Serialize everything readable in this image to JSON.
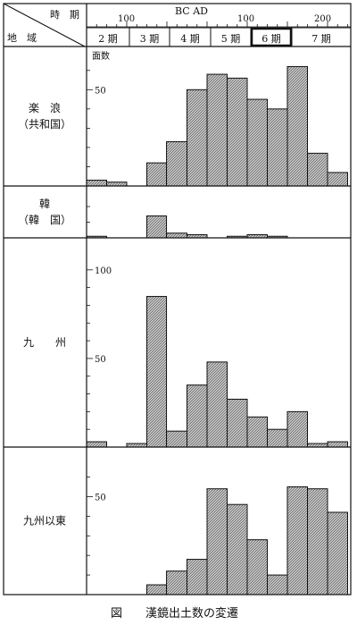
{
  "chart_data": {
    "type": "bar",
    "caption": "図　　漢鏡出土数の変遷",
    "header": {
      "time_label": "時　期",
      "region_label": "地　域",
      "era_label": "BC AD",
      "year_ticks": [
        "100",
        "100",
        "200"
      ],
      "periods": [
        "2 期",
        "3 期",
        "4 期",
        "5 期",
        "6 期",
        "7 期"
      ],
      "highlighted_period": "6 期"
    },
    "y_unit": "面数",
    "x_bins": [
      "BC200-175",
      "BC175-150",
      "BC150-125",
      "BC125-100",
      "BC100-75",
      "BC75-50",
      "BC50-25",
      "BC25-AD1",
      "AD1-25",
      "AD25-50",
      "AD50-75",
      "AD75-100",
      "AD100-125",
      "AD125-150",
      "AD150-175",
      "AD175-200",
      "AD200-225"
    ],
    "panels": [
      {
        "name_lines": [
          "楽　浪",
          "（共和国）"
        ],
        "ylim": [
          0,
          65
        ],
        "yticks": [
          50
        ],
        "minor_step": 10,
        "series": [
          {
            "x_from": "BC200",
            "x_to": "BC150",
            "value": 3
          },
          {
            "x_from": "BC150",
            "x_to": "BC100",
            "value": 2
          },
          {
            "x_from": "BC50",
            "x_to": "BC1",
            "value": 12
          },
          {
            "x_from": "BC1",
            "x_to": "AD50",
            "value": 23
          },
          {
            "x_from": "AD50",
            "x_to": "AD100",
            "value": 50
          },
          {
            "x_from": "AD100",
            "x_to": "AD150",
            "value": 58
          },
          {
            "x_from": "AD150",
            "x_to": "AD200",
            "value": 56
          },
          {
            "x_from": "AD200",
            "x_to": "AD250",
            "value": 45
          },
          {
            "x_from": "AD250",
            "x_to": "AD300",
            "value": 40
          },
          {
            "x_from": "AD300",
            "x_to": "AD350",
            "value": 62
          },
          {
            "x_from": "AD350",
            "x_to": "AD400",
            "value": 17
          },
          {
            "x_from": "AD400",
            "x_to": "AD450",
            "value": 7
          }
        ]
      },
      {
        "name_lines": [
          "韓",
          "（韓　国）"
        ],
        "ylim": [
          0,
          24
        ],
        "yticks": [],
        "minor_step": 10,
        "series": [
          {
            "x_from": "BC200",
            "x_to": "BC150",
            "value": 1
          },
          {
            "x_from": "BC50",
            "x_to": "BC1",
            "value": 14
          },
          {
            "x_from": "BC1",
            "x_to": "AD50",
            "value": 3
          },
          {
            "x_from": "AD50",
            "x_to": "AD100",
            "value": 2
          },
          {
            "x_from": "AD150",
            "x_to": "AD200",
            "value": 1
          },
          {
            "x_from": "AD200",
            "x_to": "AD250",
            "value": 2
          },
          {
            "x_from": "AD250",
            "x_to": "AD300",
            "value": 1
          }
        ]
      },
      {
        "name_lines": [
          "九　　州"
        ],
        "ylim": [
          0,
          110
        ],
        "yticks": [
          50,
          100
        ],
        "minor_step": 10,
        "series": [
          {
            "x_from": "BC200",
            "x_to": "BC150",
            "value": 3
          },
          {
            "x_from": "BC100",
            "x_to": "BC50",
            "value": 2
          },
          {
            "x_from": "BC50",
            "x_to": "BC1",
            "value": 85
          },
          {
            "x_from": "BC1",
            "x_to": "AD50",
            "value": 9
          },
          {
            "x_from": "AD50",
            "x_to": "AD100",
            "value": 35
          },
          {
            "x_from": "AD100",
            "x_to": "AD150",
            "value": 48
          },
          {
            "x_from": "AD150",
            "x_to": "AD200",
            "value": 27
          },
          {
            "x_from": "AD200",
            "x_to": "AD250",
            "value": 17
          },
          {
            "x_from": "AD250",
            "x_to": "AD300",
            "value": 10
          },
          {
            "x_from": "AD300",
            "x_to": "AD350",
            "value": 20
          },
          {
            "x_from": "AD350",
            "x_to": "AD400",
            "value": 2
          },
          {
            "x_from": "AD400",
            "x_to": "AD450",
            "value": 3
          }
        ]
      },
      {
        "name_lines": [
          "九州以東"
        ],
        "ylim": [
          0,
          68
        ],
        "yticks": [
          50
        ],
        "minor_step": 10,
        "series": [
          {
            "x_from": "BC50",
            "x_to": "BC1",
            "value": 5
          },
          {
            "x_from": "BC1",
            "x_to": "AD50",
            "value": 12
          },
          {
            "x_from": "AD50",
            "x_to": "AD100",
            "value": 18
          },
          {
            "x_from": "AD100",
            "x_to": "AD150",
            "value": 54
          },
          {
            "x_from": "AD150",
            "x_to": "AD200",
            "value": 46
          },
          {
            "x_from": "AD200",
            "x_to": "AD250",
            "value": 28
          },
          {
            "x_from": "AD250",
            "x_to": "AD300",
            "value": 10
          },
          {
            "x_from": "AD300",
            "x_to": "AD350",
            "value": 55
          },
          {
            "x_from": "AD350",
            "x_to": "AD400",
            "value": 54
          },
          {
            "x_from": "AD400",
            "x_to": "AD450",
            "value": 42
          }
        ]
      }
    ]
  }
}
